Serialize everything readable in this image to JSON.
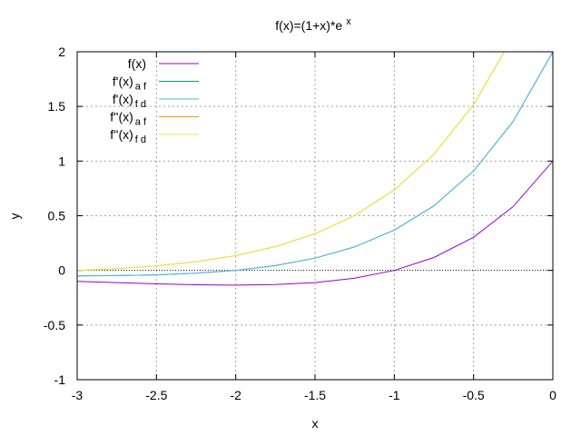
{
  "chart_data": {
    "type": "line",
    "title": "f(x)=(1+x)*e",
    "title_superscript": "x",
    "xlabel": "x",
    "ylabel": "y",
    "xlim": [
      -3,
      0
    ],
    "ylim": [
      -1,
      2
    ],
    "x_ticks": [
      -3,
      -2.5,
      -2,
      -1.5,
      -1,
      -0.5,
      0
    ],
    "x_tick_labels": [
      "-3",
      "-2.5",
      "-2",
      "-1.5",
      "-1",
      "-0.5",
      "0"
    ],
    "y_ticks": [
      -1,
      -0.5,
      0,
      0.5,
      1,
      1.5,
      2
    ],
    "y_tick_labels": [
      "-1",
      "-0.5",
      "0",
      "0.5",
      "1",
      "1.5",
      "2"
    ],
    "grid": true,
    "zero_line": true,
    "legend_position": "top-left",
    "series": [
      {
        "name": "f(x)",
        "name_base": "f(x)",
        "name_sub": "",
        "color": "#9400d3",
        "x": [
          -3,
          -2.75,
          -2.5,
          -2.25,
          -2,
          -1.75,
          -1.5,
          -1.25,
          -1,
          -0.75,
          -0.5,
          -0.25,
          0
        ],
        "values": [
          -0.0996,
          -0.1118,
          -0.1231,
          -0.1317,
          -0.1353,
          -0.1303,
          -0.1116,
          -0.0716,
          0,
          0.1181,
          0.3033,
          0.584,
          1
        ]
      },
      {
        "name": "f'(x) af",
        "name_base": "f'(x)",
        "name_sub": "a f",
        "color": "#009e73",
        "x": [
          -3,
          -2.75,
          -2.5,
          -2.25,
          -2,
          -1.75,
          -1.5,
          -1.25,
          -1,
          -0.75,
          -0.5,
          -0.25,
          0
        ],
        "values": [
          -0.0498,
          -0.0479,
          -0.041,
          -0.0264,
          0,
          0.0434,
          0.1116,
          0.2149,
          0.3679,
          0.5905,
          0.9098,
          1.3629,
          2
        ]
      },
      {
        "name": "f'(x) fd",
        "name_base": "f'(x)",
        "name_sub": "f d",
        "color": "#56b4e9",
        "x": [
          -3,
          -2.75,
          -2.5,
          -2.25,
          -2,
          -1.75,
          -1.5,
          -1.25,
          -1,
          -0.75,
          -0.5,
          -0.25,
          0
        ],
        "values": [
          -0.0498,
          -0.0479,
          -0.041,
          -0.0264,
          0,
          0.0434,
          0.1116,
          0.2149,
          0.3679,
          0.5905,
          0.9098,
          1.3629,
          2
        ]
      },
      {
        "name": "f''(x) af",
        "name_base": "f''(x)",
        "name_sub": "a f",
        "color": "#e69f00",
        "x": [
          -3,
          -2.75,
          -2.5,
          -2.25,
          -2,
          -1.75,
          -1.5,
          -1.25,
          -1,
          -0.75,
          -0.5,
          -0.25,
          0
        ],
        "values": [
          0,
          0.016,
          0.041,
          0.0791,
          0.1353,
          0.2171,
          0.3347,
          0.5015,
          0.7358,
          1.0629,
          1.5163,
          2.1418,
          3
        ]
      },
      {
        "name": "f''(x) fd",
        "name_base": "f''(x)",
        "name_sub": "f d",
        "color": "#f0e442",
        "x": [
          -3,
          -2.75,
          -2.5,
          -2.25,
          -2,
          -1.75,
          -1.5,
          -1.25,
          -1,
          -0.75,
          -0.5,
          -0.25,
          0
        ],
        "values": [
          0,
          0.016,
          0.041,
          0.0791,
          0.1353,
          0.2171,
          0.3347,
          0.5015,
          0.7358,
          1.0629,
          1.5163,
          2.1418,
          3
        ]
      }
    ]
  }
}
